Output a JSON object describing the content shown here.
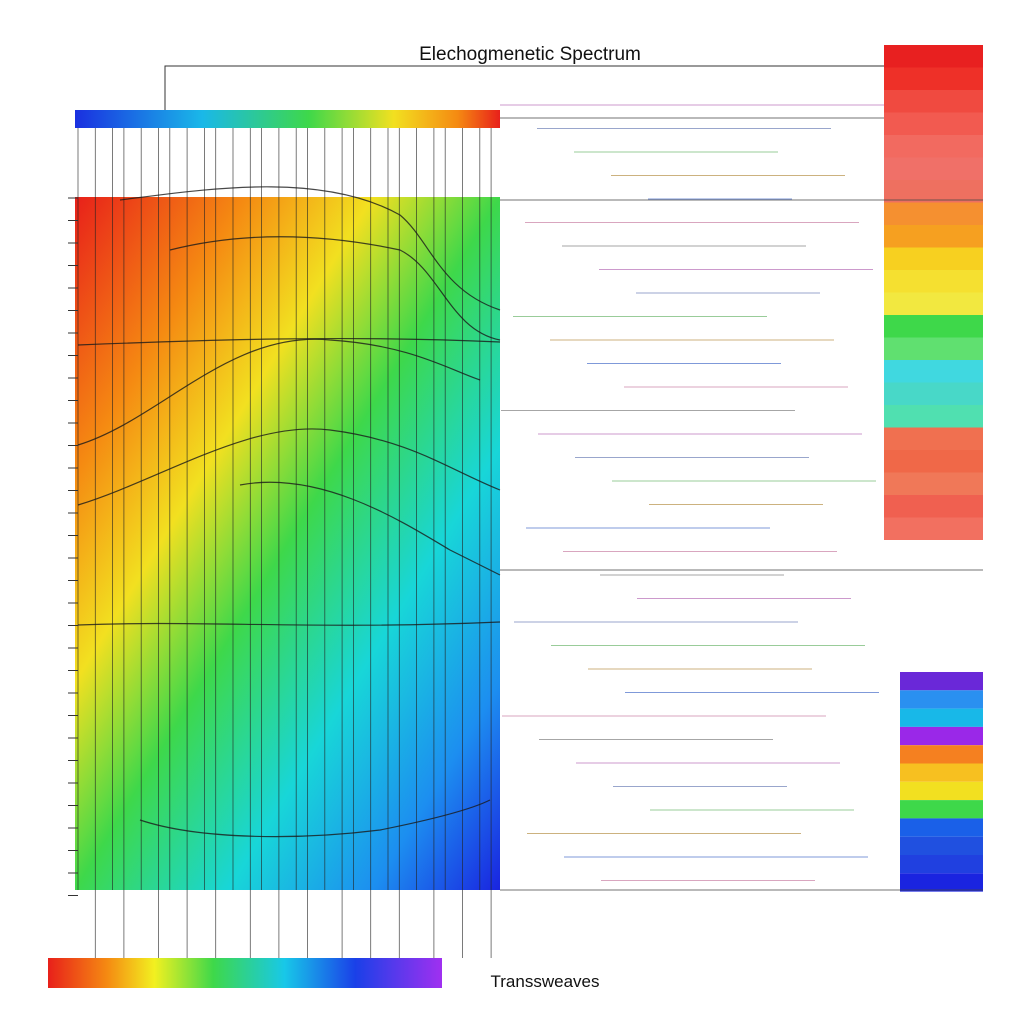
{
  "title": "Elechogmenetic Spectrum",
  "footer_label": "Transsweaves"
}
